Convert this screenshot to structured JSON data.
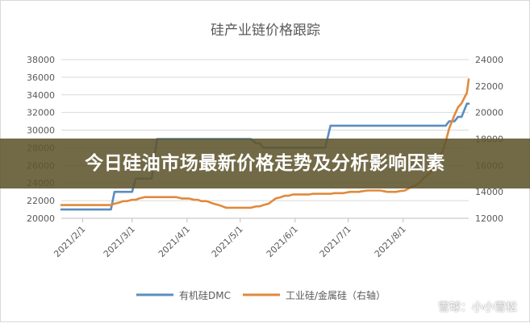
{
  "chart_data": {
    "type": "line",
    "title": "硅产业链价格跟踪",
    "x": [
      "2021/1/20",
      "2021/1/22",
      "2021/1/25",
      "2021/1/27",
      "2021/1/29",
      "2021/2/1",
      "2021/2/3",
      "2021/2/5",
      "2021/2/8",
      "2021/2/10",
      "2021/2/12",
      "2021/2/15",
      "2021/2/17",
      "2021/2/19",
      "2021/2/22",
      "2021/2/24",
      "2021/2/26",
      "2021/3/1",
      "2021/3/3",
      "2021/3/5",
      "2021/3/8",
      "2021/3/10",
      "2021/3/12",
      "2021/3/15",
      "2021/3/17",
      "2021/3/19",
      "2021/3/22",
      "2021/3/24",
      "2021/3/26",
      "2021/3/29",
      "2021/3/31",
      "2021/4/2",
      "2021/4/5",
      "2021/4/7",
      "2021/4/9",
      "2021/4/12",
      "2021/4/14",
      "2021/4/16",
      "2021/4/19",
      "2021/4/21",
      "2021/4/23",
      "2021/4/26",
      "2021/4/28",
      "2021/4/30",
      "2021/5/3",
      "2021/5/5",
      "2021/5/7",
      "2021/5/10",
      "2021/5/12",
      "2021/5/14",
      "2021/5/17",
      "2021/5/19",
      "2021/5/21",
      "2021/5/24",
      "2021/5/26",
      "2021/5/28",
      "2021/5/31",
      "2021/6/2",
      "2021/6/4",
      "2021/6/7",
      "2021/6/9",
      "2021/6/11",
      "2021/6/14",
      "2021/6/16",
      "2021/6/18",
      "2021/6/21",
      "2021/6/23",
      "2021/6/25",
      "2021/6/28",
      "2021/6/30",
      "2021/7/2",
      "2021/7/5",
      "2021/7/7",
      "2021/7/9",
      "2021/7/12",
      "2021/7/14",
      "2021/7/16",
      "2021/7/19",
      "2021/7/21",
      "2021/7/23",
      "2021/7/26",
      "2021/7/28",
      "2021/7/30",
      "2021/8/2",
      "2021/8/4",
      "2021/8/6",
      "2021/8/9",
      "2021/8/11",
      "2021/8/13",
      "2021/8/16",
      "2021/8/18",
      "2021/8/20",
      "2021/8/23",
      "2021/8/25",
      "2021/8/27",
      "2021/8/30",
      "2021/9/1",
      "2021/9/3",
      "2021/9/6",
      "2021/9/7"
    ],
    "series": [
      {
        "name": "有机硅DMC",
        "axis": "left",
        "color": "#5b8dbf",
        "values": [
          21000,
          21000,
          21000,
          21000,
          21000,
          21000,
          21000,
          21000,
          21000,
          21000,
          21000,
          21000,
          21000,
          23000,
          23000,
          23000,
          23000,
          23000,
          24500,
          24500,
          24500,
          24500,
          24500,
          29000,
          29000,
          29000,
          29000,
          29000,
          29000,
          29000,
          29000,
          29000,
          29000,
          29000,
          29000,
          29000,
          29000,
          29000,
          29000,
          29000,
          29000,
          29000,
          29000,
          29000,
          29000,
          29000,
          29000,
          28500,
          28500,
          28000,
          28000,
          28000,
          28000,
          28000,
          28000,
          28000,
          28000,
          28000,
          28000,
          28000,
          28000,
          28000,
          28000,
          28000,
          28000,
          30500,
          30500,
          30500,
          30500,
          30500,
          30500,
          30500,
          30500,
          30500,
          30500,
          30500,
          30500,
          30500,
          30500,
          30500,
          30500,
          30500,
          30500,
          30500,
          30500,
          30500,
          30500,
          30500,
          30500,
          30500,
          30500,
          30500,
          30500,
          30500,
          31000,
          31000,
          31500,
          31500,
          33000,
          33000
        ]
      },
      {
        "name": "工业硅/金属硅（右轴）",
        "axis": "right",
        "color": "#e08a3c",
        "values": [
          13000,
          13000,
          13000,
          13000,
          13000,
          13000,
          13000,
          13000,
          13000,
          13000,
          13000,
          13000,
          13000,
          13100,
          13200,
          13300,
          13300,
          13400,
          13400,
          13500,
          13600,
          13600,
          13600,
          13600,
          13600,
          13600,
          13600,
          13600,
          13600,
          13500,
          13500,
          13500,
          13400,
          13400,
          13300,
          13300,
          13200,
          13100,
          13000,
          12900,
          12800,
          12800,
          12800,
          12800,
          12800,
          12800,
          12800,
          12900,
          12900,
          13000,
          13100,
          13300,
          13500,
          13600,
          13700,
          13700,
          13800,
          13800,
          13800,
          13800,
          13800,
          13850,
          13850,
          13850,
          13850,
          13850,
          13900,
          13900,
          13900,
          13950,
          14000,
          14000,
          14000,
          14050,
          14100,
          14100,
          14100,
          14100,
          14050,
          14000,
          14000,
          14000,
          14050,
          14100,
          14250,
          14400,
          14550,
          14800,
          15100,
          15400,
          15800,
          16400,
          17000,
          17800,
          18800,
          19800,
          20400,
          20700,
          21500,
          22500
        ]
      }
    ],
    "y_left": {
      "ticks": [
        "20000",
        "22000",
        "24000",
        "26000",
        "28000",
        "30000",
        "32000",
        "34000",
        "36000",
        "38000"
      ],
      "ylim": [
        20000,
        38000
      ]
    },
    "y_right": {
      "ticks": [
        "12000",
        "14000",
        "16000",
        "18000",
        "20000",
        "22000",
        "24000"
      ],
      "ylim": [
        12000,
        24000
      ]
    },
    "x_ticks": [
      {
        "date": "2021/2/1",
        "label": "2021/2/1"
      },
      {
        "date": "2021/3/1",
        "label": "2021/3/1"
      },
      {
        "date": "2021/4/1",
        "label": "2021/4/1"
      },
      {
        "date": "2021/5/1",
        "label": "2021/5/1"
      },
      {
        "date": "2021/6/1",
        "label": "2021/6/1"
      },
      {
        "date": "2021/7/1",
        "label": "2021/7/1"
      },
      {
        "date": "2021/8/1",
        "label": "2021/8/1"
      }
    ],
    "x_range": [
      "2021/1/20",
      "2021/9/7"
    ],
    "legend": {
      "placement": "bottom"
    },
    "grid": true
  },
  "banner": {
    "text": "今日硅油市场最新价格走势及分析影响因素"
  },
  "watermark": {
    "text": "雪球：小小雪松"
  }
}
